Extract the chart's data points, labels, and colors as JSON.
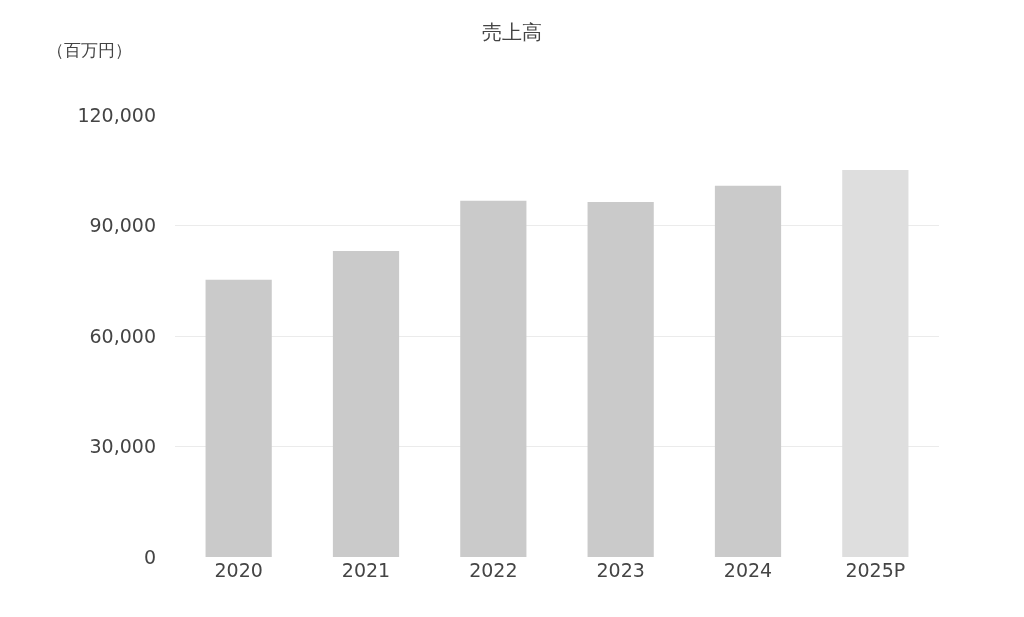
{
  "chart_data": {
    "type": "bar",
    "title": "売上高",
    "ylabel": "（百万円）",
    "categories": [
      "2020",
      "2021",
      "2022",
      "2023",
      "2024",
      "2025P"
    ],
    "values": [
      75300,
      83100,
      96700,
      96400,
      100800,
      105100
    ],
    "colors": [
      "#cacaca",
      "#cacaca",
      "#cacaca",
      "#cacaca",
      "#cacaca",
      "#dedede"
    ],
    "ylim": [
      0,
      120000
    ],
    "yticks": [
      {
        "value": 0,
        "label": "0"
      },
      {
        "value": 30000,
        "label": "30,000"
      },
      {
        "value": 60000,
        "label": "60,000"
      },
      {
        "value": 90000,
        "label": "90,000"
      },
      {
        "value": 120000,
        "label": "120,000"
      }
    ],
    "grid": "y"
  }
}
